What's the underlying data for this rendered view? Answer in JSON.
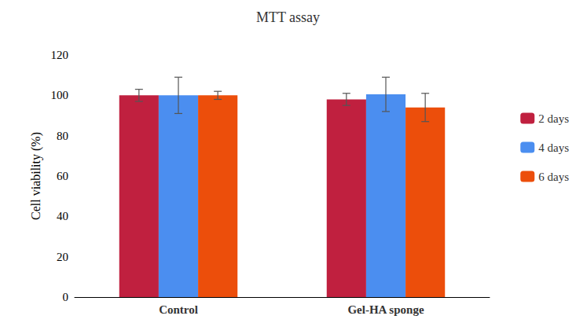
{
  "chart_data": {
    "type": "bar",
    "title": "MTT assay",
    "y_label": "Cell viability (%)",
    "categories": [
      "Control",
      "Gel-HA sponge"
    ],
    "series": [
      {
        "name": "2 days",
        "color": "#c0203f",
        "values": [
          100,
          98
        ],
        "errors": [
          3,
          3
        ]
      },
      {
        "name": "4 days",
        "color": "#4b8ef0",
        "values": [
          100,
          100.5
        ],
        "errors": [
          9,
          8.5
        ]
      },
      {
        "name": "6 days",
        "color": "#ec4e0b",
        "values": [
          100,
          94
        ],
        "errors": [
          2,
          7
        ]
      }
    ],
    "ylim": [
      0,
      120
    ],
    "yticks": [
      0,
      20,
      40,
      60,
      80,
      100,
      120
    ],
    "grid": false,
    "legend": "right"
  }
}
